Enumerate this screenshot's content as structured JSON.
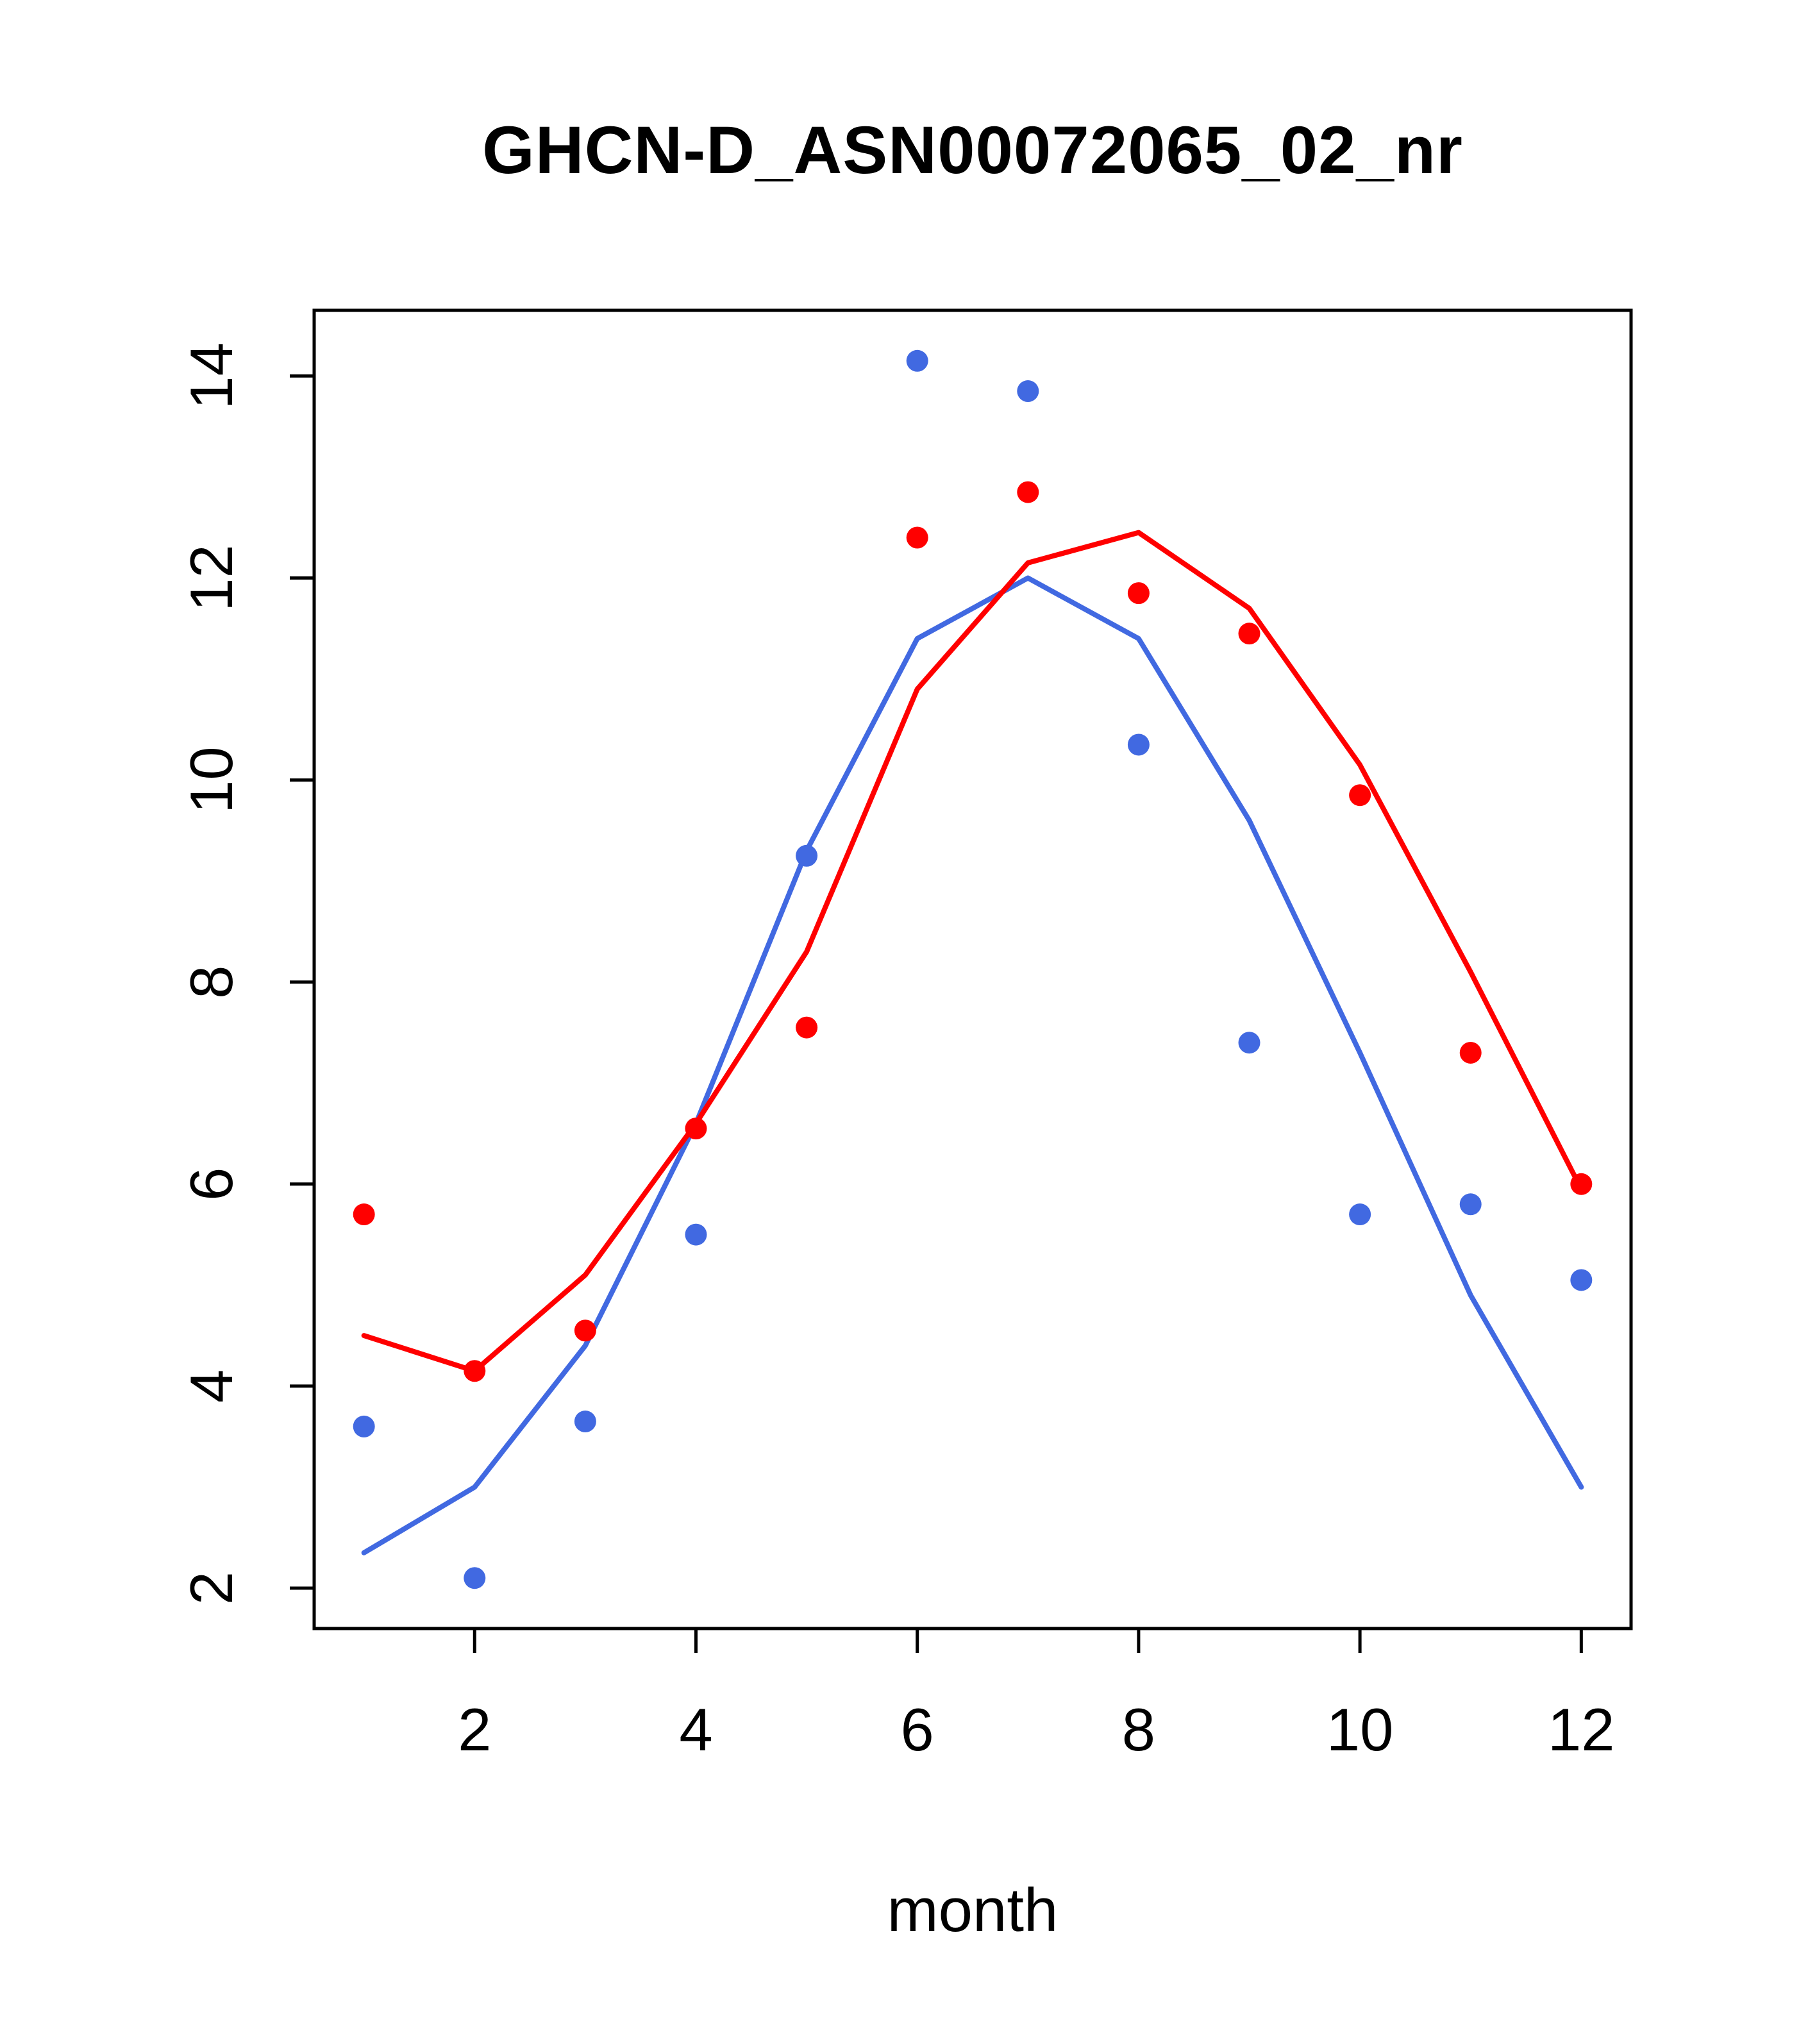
{
  "chart_data": {
    "type": "line",
    "title": "GHCN-D_ASN00072065_02_nr",
    "xlabel": "month",
    "ylabel": "",
    "x": [
      1,
      2,
      3,
      4,
      5,
      6,
      7,
      8,
      9,
      10,
      11,
      12
    ],
    "xlim": [
      0.55,
      12.45
    ],
    "ylim": [
      1.6,
      14.65
    ],
    "xticks": [
      2,
      4,
      6,
      8,
      10,
      12
    ],
    "yticks": [
      2,
      4,
      6,
      8,
      10,
      12,
      14
    ],
    "grid": false,
    "legend": "none",
    "colors": {
      "red": "#ff0000",
      "blue": "#4169e1",
      "axis": "#000000",
      "background": "#ffffff"
    },
    "series": [
      {
        "name": "blue-line",
        "type": "line",
        "color": "#4169e1",
        "values": [
          2.35,
          3.0,
          4.4,
          6.6,
          9.3,
          11.4,
          12.0,
          11.4,
          9.6,
          7.3,
          4.9,
          3.0
        ]
      },
      {
        "name": "red-line",
        "type": "line",
        "color": "#ff0000",
        "values": [
          4.5,
          4.15,
          5.1,
          6.6,
          8.3,
          10.9,
          12.15,
          12.45,
          11.7,
          10.15,
          8.1,
          5.95
        ]
      },
      {
        "name": "blue-points",
        "type": "scatter",
        "color": "#4169e1",
        "values": [
          3.6,
          2.1,
          3.65,
          5.5,
          9.25,
          14.15,
          13.85,
          10.35,
          7.4,
          5.7,
          5.8,
          5.05
        ]
      },
      {
        "name": "red-points",
        "type": "scatter",
        "color": "#ff0000",
        "values": [
          5.7,
          4.15,
          4.55,
          6.55,
          7.55,
          12.4,
          12.85,
          11.85,
          11.45,
          9.85,
          7.3,
          6.0
        ]
      }
    ]
  }
}
